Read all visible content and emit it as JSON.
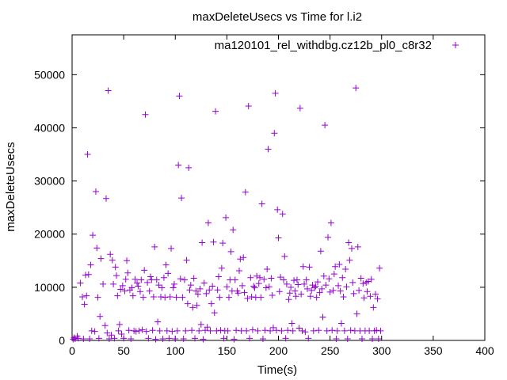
{
  "chart_data": {
    "type": "scatter",
    "title": "maxDeleteUsecs vs Time for l.i2",
    "xlabel": "Time(s)",
    "ylabel": "maxDeleteUsecs",
    "xlim": [
      0,
      400
    ],
    "ylim": [
      0,
      57500
    ],
    "x_ticks": [
      0,
      50,
      100,
      150,
      200,
      250,
      300,
      350,
      400
    ],
    "y_ticks": [
      0,
      10000,
      20000,
      30000,
      40000,
      50000
    ],
    "grid": false,
    "legend_position": "top-right",
    "series": [
      {
        "name": "ma120101_rel_withdbg.cz12b_pl0_c8r32",
        "color": "#9400d3",
        "marker": "+",
        "points": [
          [
            1,
            200
          ],
          [
            2,
            500
          ],
          [
            3,
            300
          ],
          [
            5,
            800
          ],
          [
            6,
            400
          ],
          [
            8,
            10800
          ],
          [
            10,
            8200
          ],
          [
            11,
            300
          ],
          [
            12,
            6800
          ],
          [
            13,
            12300
          ],
          [
            14,
            8400
          ],
          [
            15,
            35000
          ],
          [
            16,
            12400
          ],
          [
            17,
            300
          ],
          [
            18,
            14200
          ],
          [
            19,
            1800
          ],
          [
            20,
            19800
          ],
          [
            22,
            1700
          ],
          [
            23,
            28000
          ],
          [
            24,
            17400
          ],
          [
            25,
            8100
          ],
          [
            26,
            400
          ],
          [
            27,
            4500
          ],
          [
            28,
            15400
          ],
          [
            30,
            10600
          ],
          [
            32,
            2800
          ],
          [
            33,
            26700
          ],
          [
            34,
            1400
          ],
          [
            35,
            47000
          ],
          [
            36,
            300
          ],
          [
            37,
            16200
          ],
          [
            38,
            1000
          ],
          [
            39,
            15100
          ],
          [
            40,
            10600
          ],
          [
            41,
            400
          ],
          [
            42,
            13800
          ],
          [
            43,
            12200
          ],
          [
            44,
            8400
          ],
          [
            45,
            1800
          ],
          [
            46,
            3000
          ],
          [
            47,
            9600
          ],
          [
            48,
            1200
          ],
          [
            49,
            10300
          ],
          [
            50,
            400
          ],
          [
            51,
            9300
          ],
          [
            52,
            11500
          ],
          [
            53,
            15000
          ],
          [
            54,
            12700
          ],
          [
            55,
            1900
          ],
          [
            56,
            9500
          ],
          [
            57,
            300
          ],
          [
            58,
            9900
          ],
          [
            59,
            8400
          ],
          [
            60,
            1800
          ],
          [
            61,
            11500
          ],
          [
            62,
            1700
          ],
          [
            63,
            10800
          ],
          [
            64,
            10200
          ],
          [
            65,
            1800
          ],
          [
            66,
            9200
          ],
          [
            67,
            11400
          ],
          [
            68,
            2000
          ],
          [
            69,
            8100
          ],
          [
            70,
            13200
          ],
          [
            71,
            42500
          ],
          [
            72,
            1700
          ],
          [
            73,
            10900
          ],
          [
            74,
            400
          ],
          [
            75,
            9300
          ],
          [
            76,
            12000
          ],
          [
            77,
            11400
          ],
          [
            78,
            1900
          ],
          [
            79,
            8200
          ],
          [
            80,
            17600
          ],
          [
            81,
            200
          ],
          [
            82,
            11400
          ],
          [
            83,
            3500
          ],
          [
            84,
            10400
          ],
          [
            85,
            1800
          ],
          [
            86,
            8200
          ],
          [
            87,
            9900
          ],
          [
            88,
            300
          ],
          [
            89,
            11800
          ],
          [
            90,
            8100
          ],
          [
            91,
            14200
          ],
          [
            92,
            1800
          ],
          [
            93,
            12600
          ],
          [
            94,
            400
          ],
          [
            95,
            8200
          ],
          [
            96,
            17300
          ],
          [
            97,
            1700
          ],
          [
            98,
            9900
          ],
          [
            99,
            10600
          ],
          [
            100,
            300
          ],
          [
            101,
            8100
          ],
          [
            102,
            1800
          ],
          [
            103,
            33000
          ],
          [
            104,
            46000
          ],
          [
            105,
            11600
          ],
          [
            106,
            26800
          ],
          [
            107,
            8100
          ],
          [
            108,
            300
          ],
          [
            109,
            11400
          ],
          [
            110,
            1800
          ],
          [
            111,
            15100
          ],
          [
            112,
            6900
          ],
          [
            113,
            32500
          ],
          [
            114,
            9500
          ],
          [
            115,
            10400
          ],
          [
            116,
            1900
          ],
          [
            117,
            6200
          ],
          [
            118,
            11700
          ],
          [
            119,
            400
          ],
          [
            120,
            9300
          ],
          [
            121,
            6600
          ],
          [
            122,
            8700
          ],
          [
            123,
            1800
          ],
          [
            124,
            9700
          ],
          [
            125,
            3000
          ],
          [
            126,
            18400
          ],
          [
            127,
            200
          ],
          [
            128,
            10800
          ],
          [
            129,
            1900
          ],
          [
            130,
            8800
          ],
          [
            131,
            2500
          ],
          [
            132,
            22100
          ],
          [
            133,
            9500
          ],
          [
            134,
            1800
          ],
          [
            135,
            6900
          ],
          [
            136,
            10200
          ],
          [
            137,
            18500
          ],
          [
            138,
            5200
          ],
          [
            139,
            43100
          ],
          [
            140,
            1800
          ],
          [
            141,
            9500
          ],
          [
            142,
            12000
          ],
          [
            143,
            8100
          ],
          [
            144,
            1900
          ],
          [
            145,
            13600
          ],
          [
            146,
            18300
          ],
          [
            147,
            400
          ],
          [
            148,
            1800
          ],
          [
            149,
            23100
          ],
          [
            150,
            10100
          ],
          [
            151,
            1800
          ],
          [
            152,
            8100
          ],
          [
            153,
            11400
          ],
          [
            154,
            16700
          ],
          [
            155,
            9300
          ],
          [
            156,
            20800
          ],
          [
            157,
            200
          ],
          [
            158,
            11400
          ],
          [
            159,
            1900
          ],
          [
            160,
            9300
          ],
          [
            161,
            8900
          ],
          [
            162,
            13100
          ],
          [
            163,
            15300
          ],
          [
            164,
            1800
          ],
          [
            165,
            10300
          ],
          [
            166,
            15600
          ],
          [
            167,
            9000
          ],
          [
            168,
            27900
          ],
          [
            169,
            1800
          ],
          [
            170,
            7900
          ],
          [
            171,
            44100
          ],
          [
            172,
            400
          ],
          [
            173,
            11800
          ],
          [
            174,
            8200
          ],
          [
            175,
            2000
          ],
          [
            176,
            10200
          ],
          [
            177,
            9900
          ],
          [
            178,
            8100
          ],
          [
            179,
            12100
          ],
          [
            180,
            1800
          ],
          [
            181,
            10700
          ],
          [
            182,
            11800
          ],
          [
            183,
            8100
          ],
          [
            184,
            25700
          ],
          [
            185,
            300
          ],
          [
            186,
            11500
          ],
          [
            187,
            1900
          ],
          [
            188,
            9900
          ],
          [
            189,
            13400
          ],
          [
            190,
            36000
          ],
          [
            191,
            10100
          ],
          [
            192,
            1800
          ],
          [
            193,
            11700
          ],
          [
            194,
            8500
          ],
          [
            195,
            2400
          ],
          [
            196,
            39000
          ],
          [
            197,
            46500
          ],
          [
            198,
            1900
          ],
          [
            199,
            24600
          ],
          [
            200,
            19300
          ],
          [
            201,
            9200
          ],
          [
            202,
            11900
          ],
          [
            203,
            1800
          ],
          [
            204,
            23800
          ],
          [
            205,
            11400
          ],
          [
            206,
            15800
          ],
          [
            207,
            400
          ],
          [
            208,
            10600
          ],
          [
            209,
            1900
          ],
          [
            210,
            7700
          ],
          [
            211,
            8900
          ],
          [
            212,
            10000
          ],
          [
            213,
            3200
          ],
          [
            214,
            1800
          ],
          [
            215,
            11300
          ],
          [
            216,
            9300
          ],
          [
            217,
            8300
          ],
          [
            218,
            11400
          ],
          [
            219,
            10500
          ],
          [
            220,
            2300
          ],
          [
            221,
            43700
          ],
          [
            222,
            8700
          ],
          [
            223,
            1800
          ],
          [
            224,
            13900
          ],
          [
            225,
            10600
          ],
          [
            226,
            1600
          ],
          [
            227,
            11400
          ],
          [
            228,
            9700
          ],
          [
            229,
            400
          ],
          [
            230,
            13800
          ],
          [
            231,
            8300
          ],
          [
            232,
            9400
          ],
          [
            233,
            10400
          ],
          [
            234,
            1800
          ],
          [
            235,
            9900
          ],
          [
            236,
            10200
          ],
          [
            237,
            8100
          ],
          [
            238,
            11000
          ],
          [
            239,
            1900
          ],
          [
            240,
            9000
          ],
          [
            241,
            16800
          ],
          [
            242,
            9700
          ],
          [
            243,
            4400
          ],
          [
            244,
            12100
          ],
          [
            245,
            40500
          ],
          [
            246,
            10400
          ],
          [
            247,
            1800
          ],
          [
            248,
            19400
          ],
          [
            249,
            11600
          ],
          [
            250,
            9100
          ],
          [
            251,
            22100
          ],
          [
            252,
            1900
          ],
          [
            253,
            9400
          ],
          [
            254,
            12500
          ],
          [
            255,
            13900
          ],
          [
            256,
            300
          ],
          [
            257,
            1800
          ],
          [
            258,
            10300
          ],
          [
            259,
            14300
          ],
          [
            260,
            9300
          ],
          [
            261,
            3200
          ],
          [
            262,
            11800
          ],
          [
            263,
            8200
          ],
          [
            264,
            1800
          ],
          [
            265,
            13400
          ],
          [
            266,
            10100
          ],
          [
            267,
            300
          ],
          [
            268,
            18400
          ],
          [
            269,
            15100
          ],
          [
            270,
            1900
          ],
          [
            271,
            17300
          ],
          [
            272,
            10900
          ],
          [
            273,
            8800
          ],
          [
            274,
            1800
          ],
          [
            275,
            47500
          ],
          [
            276,
            5000
          ],
          [
            277,
            17600
          ],
          [
            278,
            9400
          ],
          [
            279,
            1800
          ],
          [
            280,
            11700
          ],
          [
            281,
            300
          ],
          [
            282,
            10700
          ],
          [
            283,
            8000
          ],
          [
            284,
            1800
          ],
          [
            285,
            10900
          ],
          [
            286,
            9200
          ],
          [
            287,
            11100
          ],
          [
            288,
            1800
          ],
          [
            289,
            8300
          ],
          [
            290,
            11500
          ],
          [
            291,
            300
          ],
          [
            292,
            6200
          ],
          [
            293,
            1800
          ],
          [
            294,
            8700
          ],
          [
            295,
            1900
          ],
          [
            296,
            7800
          ],
          [
            297,
            300
          ],
          [
            298,
            13600
          ],
          [
            299,
            1800
          ]
        ]
      }
    ]
  }
}
